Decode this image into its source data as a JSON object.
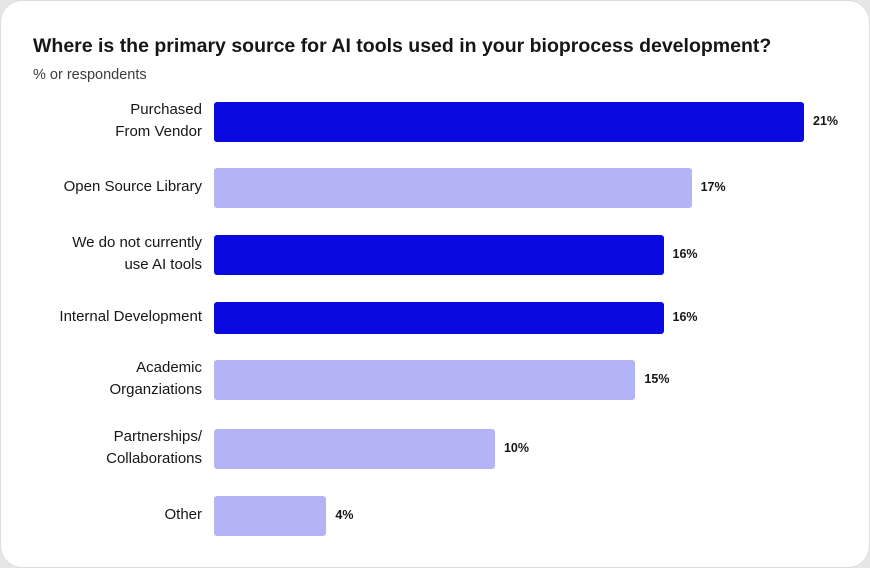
{
  "chart_data": {
    "type": "bar",
    "orientation": "horizontal",
    "title": "Where is the primary source for AI tools used in your bioprocess development?",
    "subtitle": "% or respondents",
    "categories": [
      [
        "Purchased",
        "From Vendor"
      ],
      [
        "Open Source Library"
      ],
      [
        "We do not currently",
        "use AI tools"
      ],
      [
        "Internal Development"
      ],
      [
        "Academic",
        "Organziations"
      ],
      [
        "Partnerships/",
        "Collaborations"
      ],
      [
        "Other"
      ]
    ],
    "values": [
      21,
      17,
      16,
      16,
      15,
      10,
      4
    ],
    "value_labels": [
      "21%",
      "17%",
      "16%",
      "16%",
      "15%",
      "10%",
      "4%"
    ],
    "highlight": [
      true,
      false,
      true,
      true,
      false,
      false,
      false
    ],
    "colors": {
      "highlight": "#0a0ae0",
      "default": "#b3b3f7"
    },
    "xlim": [
      0,
      21
    ],
    "grid": false,
    "legend": "none"
  }
}
